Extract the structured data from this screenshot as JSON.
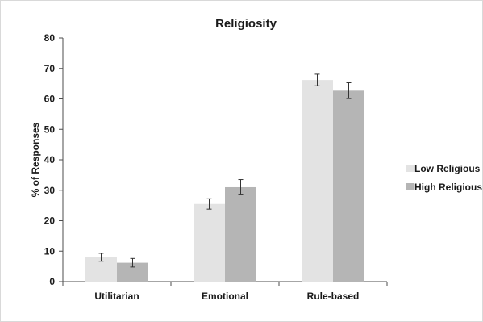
{
  "chart_data": {
    "type": "bar",
    "title": "Religiosity",
    "xlabel": "",
    "ylabel": "% of Responses",
    "ylim": [
      0,
      80
    ],
    "yticks": [
      0,
      10,
      20,
      30,
      40,
      50,
      60,
      70,
      80
    ],
    "grid": false,
    "legend_position": "right",
    "categories": [
      "Utilitarian",
      "Emotional",
      "Rule-based"
    ],
    "series": [
      {
        "name": "Low Religious",
        "color": "#e3e3e3",
        "values": [
          8.0,
          25.5,
          66.2
        ],
        "error": [
          1.3,
          1.7,
          1.9
        ]
      },
      {
        "name": "High Religious",
        "color": "#b5b5b5",
        "values": [
          6.2,
          31.0,
          62.7
        ],
        "error": [
          1.4,
          2.5,
          2.6
        ]
      }
    ]
  }
}
